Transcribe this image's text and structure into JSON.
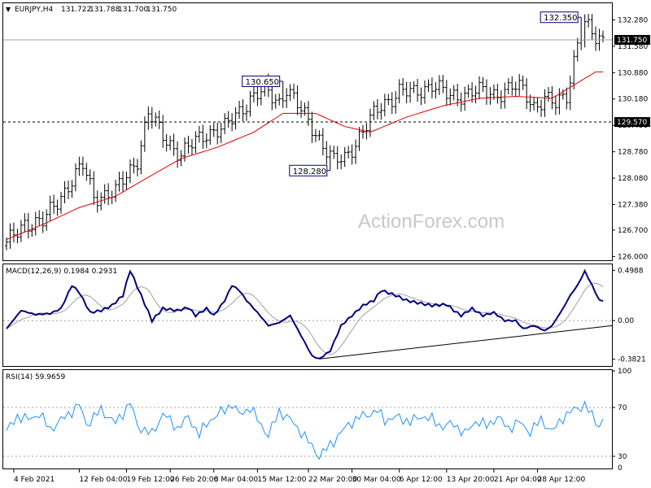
{
  "chart_data": [
    {
      "panel": "price",
      "type": "ohlc",
      "title": "EURJPY,H4",
      "ohlc_header": [
        "131.722",
        "131.788",
        "131.700",
        "131.750"
      ],
      "ylim": [
        125.9,
        132.7
      ],
      "y_ticks": [
        "132.280",
        "131.580",
        "130.880",
        "130.180",
        "129.480",
        "128.780",
        "128.080",
        "127.380",
        "126.700",
        "126.000"
      ],
      "current_price_label": "131.750",
      "current_price": 131.75,
      "level_label": "129.570",
      "level": 129.57,
      "annotations": [
        {
          "text": "132.350",
          "bar": 158,
          "value": 132.35
        },
        {
          "text": "130.650",
          "bar": 76,
          "value": 130.65
        },
        {
          "text": "128.280",
          "bar": 89,
          "value": 128.28
        }
      ],
      "series": [
        {
          "name": "",
          "kind": "moving-average",
          "color": "#e00000",
          "anchors": [
            [
              0,
              126.45
            ],
            [
              10,
              126.85
            ],
            [
              20,
              127.3
            ],
            [
              30,
              127.6
            ],
            [
              38,
              128.05
            ],
            [
              48,
              128.6
            ],
            [
              58,
              128.9
            ],
            [
              68,
              129.3
            ],
            [
              76,
              129.8
            ],
            [
              85,
              129.8
            ],
            [
              93,
              129.45
            ],
            [
              100,
              129.3
            ],
            [
              110,
              129.7
            ],
            [
              120,
              130.0
            ],
            [
              130,
              130.2
            ],
            [
              140,
              130.25
            ],
            [
              150,
              130.2
            ],
            [
              156,
              130.55
            ],
            [
              162,
              130.9
            ]
          ]
        }
      ],
      "close_anchors": [
        [
          0,
          126.3
        ],
        [
          5,
          126.9
        ],
        [
          10,
          126.9
        ],
        [
          17,
          127.9
        ],
        [
          21,
          128.4
        ],
        [
          24,
          127.6
        ],
        [
          30,
          127.7
        ],
        [
          36,
          128.6
        ],
        [
          39,
          129.8
        ],
        [
          43,
          129.2
        ],
        [
          48,
          128.7
        ],
        [
          55,
          129.3
        ],
        [
          60,
          129.4
        ],
        [
          67,
          130.2
        ],
        [
          71,
          130.4
        ],
        [
          75,
          130.1
        ],
        [
          77,
          130.5
        ],
        [
          80,
          130.0
        ],
        [
          85,
          129.3
        ],
        [
          90,
          128.5
        ],
        [
          93,
          128.6
        ],
        [
          97,
          129.2
        ],
        [
          103,
          130.0
        ],
        [
          108,
          130.4
        ],
        [
          112,
          130.3
        ],
        [
          117,
          130.6
        ],
        [
          122,
          130.2
        ],
        [
          128,
          130.4
        ],
        [
          134,
          130.3
        ],
        [
          139,
          130.5
        ],
        [
          142,
          130.4
        ],
        [
          145,
          130.0
        ],
        [
          148,
          130.2
        ],
        [
          151,
          130.0
        ],
        [
          154,
          130.3
        ],
        [
          157,
          131.7
        ],
        [
          159,
          132.15
        ],
        [
          162,
          131.75
        ]
      ]
    },
    {
      "panel": "macd",
      "type": "line",
      "title": "MACD(12,26,9) 0.1984 0.2931",
      "ylim": [
        -0.45,
        0.55
      ],
      "y_ticks": [
        "0.4988",
        "0.00",
        "-0.3821"
      ],
      "series": [
        {
          "name": "",
          "color": "#000080",
          "anchors": [
            [
              0,
              -0.08
            ],
            [
              4,
              0.1
            ],
            [
              8,
              0.06
            ],
            [
              12,
              0.07
            ],
            [
              15,
              0.12
            ],
            [
              18,
              0.35
            ],
            [
              20,
              0.28
            ],
            [
              23,
              0.08
            ],
            [
              26,
              0.1
            ],
            [
              29,
              0.15
            ],
            [
              32,
              0.25
            ],
            [
              34,
              0.5
            ],
            [
              37,
              0.25
            ],
            [
              40,
              0.0
            ],
            [
              43,
              0.12
            ],
            [
              47,
              0.1
            ],
            [
              50,
              0.13
            ],
            [
              52,
              0.05
            ],
            [
              55,
              0.12
            ],
            [
              57,
              0.05
            ],
            [
              60,
              0.2
            ],
            [
              62,
              0.35
            ],
            [
              64,
              0.3
            ],
            [
              66,
              0.2
            ],
            [
              69,
              0.08
            ],
            [
              72,
              -0.05
            ],
            [
              75,
              -0.02
            ],
            [
              78,
              0.05
            ],
            [
              81,
              -0.15
            ],
            [
              84,
              -0.35
            ],
            [
              86,
              -0.38
            ],
            [
              89,
              -0.3
            ],
            [
              92,
              -0.05
            ],
            [
              95,
              0.05
            ],
            [
              98,
              0.15
            ],
            [
              101,
              0.2
            ],
            [
              103,
              0.3
            ],
            [
              107,
              0.25
            ],
            [
              110,
              0.2
            ],
            [
              114,
              0.17
            ],
            [
              117,
              0.15
            ],
            [
              121,
              0.16
            ],
            [
              123,
              0.1
            ],
            [
              125,
              0.05
            ],
            [
              128,
              0.12
            ],
            [
              131,
              0.05
            ],
            [
              134,
              0.08
            ],
            [
              137,
              0.0
            ],
            [
              140,
              0.0
            ],
            [
              142,
              -0.08
            ],
            [
              145,
              -0.05
            ],
            [
              148,
              -0.1
            ],
            [
              150,
              -0.05
            ],
            [
              153,
              0.12
            ],
            [
              155,
              0.25
            ],
            [
              157,
              0.35
            ],
            [
              159,
              0.49
            ],
            [
              161,
              0.35
            ],
            [
              163,
              0.2
            ]
          ]
        },
        {
          "name": "",
          "color": "#a0a0a0",
          "lag": 3
        }
      ],
      "trendline": [
        [
          86,
          -0.38
        ],
        [
          168,
          -0.05
        ]
      ]
    },
    {
      "panel": "rsi",
      "type": "line",
      "title": "RSI(14) 59.9659",
      "ylim": [
        20,
        100
      ],
      "y_ticks": [
        "100",
        "70",
        "30",
        "0"
      ],
      "series": [
        {
          "name": "",
          "color": "#1e90ff",
          "anchors": [
            [
              0,
              50
            ],
            [
              3,
              63
            ],
            [
              6,
              60
            ],
            [
              9,
              65
            ],
            [
              12,
              52
            ],
            [
              16,
              62
            ],
            [
              20,
              72
            ],
            [
              22,
              56
            ],
            [
              26,
              68
            ],
            [
              30,
              57
            ],
            [
              34,
              74
            ],
            [
              36,
              55
            ],
            [
              40,
              48
            ],
            [
              43,
              65
            ],
            [
              47,
              53
            ],
            [
              50,
              62
            ],
            [
              53,
              48
            ],
            [
              56,
              60
            ],
            [
              60,
              68
            ],
            [
              62,
              73
            ],
            [
              64,
              64
            ],
            [
              67,
              70
            ],
            [
              69,
              60
            ],
            [
              72,
              47
            ],
            [
              75,
              67
            ],
            [
              78,
              60
            ],
            [
              81,
              50
            ],
            [
              84,
              38
            ],
            [
              86,
              30
            ],
            [
              88,
              36
            ],
            [
              91,
              46
            ],
            [
              94,
              56
            ],
            [
              97,
              62
            ],
            [
              100,
              65
            ],
            [
              102,
              67
            ],
            [
              104,
              60
            ],
            [
              108,
              62
            ],
            [
              111,
              58
            ],
            [
              114,
              63
            ],
            [
              117,
              60
            ],
            [
              120,
              54
            ],
            [
              123,
              57
            ],
            [
              126,
              48
            ],
            [
              129,
              59
            ],
            [
              132,
              55
            ],
            [
              135,
              62
            ],
            [
              138,
              53
            ],
            [
              141,
              58
            ],
            [
              144,
              50
            ],
            [
              147,
              60
            ],
            [
              150,
              50
            ],
            [
              153,
              62
            ],
            [
              156,
              68
            ],
            [
              159,
              72
            ],
            [
              161,
              63
            ],
            [
              163,
              55
            ],
            [
              164,
              60
            ]
          ]
        }
      ]
    }
  ],
  "x_ticks": [
    {
      "label": "4 Feb 2021",
      "bar": 2
    },
    {
      "label": "12 Feb 04:00",
      "bar": 20
    },
    {
      "label": "19 Feb 12:00",
      "bar": 33
    },
    {
      "label": "26 Feb 20:00",
      "bar": 45
    },
    {
      "label": "8 Mar 04:00",
      "bar": 57
    },
    {
      "label": "15 Mar 12:00",
      "bar": 69
    },
    {
      "label": "22 Mar 20:00",
      "bar": 83
    },
    {
      "label": "30 Mar 04:00",
      "bar": 95
    },
    {
      "label": "6 Apr 12:00",
      "bar": 108
    },
    {
      "label": "13 Apr 20:00",
      "bar": 121
    },
    {
      "label": "21 Apr 04:00",
      "bar": 134
    },
    {
      "label": "28 Apr 12:00",
      "bar": 146
    }
  ],
  "watermark": "ActionForex.com",
  "colors": {
    "price_bars": "#000000",
    "moving_average": "#e00000",
    "macd": "#000080",
    "signal": "#a0a0a0",
    "rsi": "#1e90ff",
    "label_box": "#000080",
    "current_price_bg": "#000000",
    "level_bg": "#000000"
  }
}
